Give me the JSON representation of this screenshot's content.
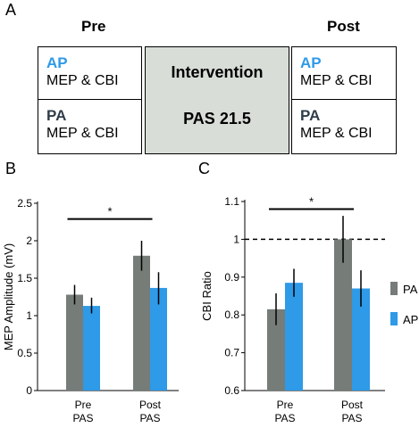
{
  "panels": {
    "a": "A",
    "b": "B",
    "c": "C"
  },
  "design": {
    "pre_header": "Pre",
    "post_header": "Post",
    "intervention_title": "Intervention",
    "intervention_protocol": "PAS 21.5",
    "ap_label": "AP",
    "pa_label": "PA",
    "measure": "MEP & CBI"
  },
  "colors": {
    "PA": "#767c78",
    "AP": "#2e9ae8"
  },
  "chart_data": [
    {
      "type": "bar",
      "panel": "B",
      "ylabel": "MEP Amplitude (mV)",
      "ylim": [
        0,
        2.5
      ],
      "yticks": [
        "0",
        "0.5",
        "1",
        "1.5",
        "2",
        "2.5"
      ],
      "categories": [
        "Pre PAS",
        "Post PAS"
      ],
      "category_lines": [
        [
          "Pre",
          "PAS"
        ],
        [
          "Post",
          "PAS"
        ]
      ],
      "series": [
        {
          "name": "PA",
          "values": [
            1.28,
            1.8
          ],
          "err_low": [
            1.15,
            1.6
          ],
          "err_high": [
            1.41,
            2.0
          ]
        },
        {
          "name": "AP",
          "values": [
            1.13,
            1.37
          ],
          "err_low": [
            1.03,
            1.15
          ],
          "err_high": [
            1.24,
            1.58
          ]
        }
      ],
      "significance": {
        "label": "*",
        "y": 2.29
      }
    },
    {
      "type": "bar",
      "panel": "C",
      "ylabel": "CBI Ratio",
      "ylim": [
        0.6,
        1.1
      ],
      "yticks": [
        "0.6",
        "0.7",
        "0.8",
        "0.9",
        "1",
        "1.1"
      ],
      "categories": [
        "Pre PAS",
        "Post PAS"
      ],
      "category_lines": [
        [
          "Pre",
          "PAS"
        ],
        [
          "Post",
          "PAS"
        ]
      ],
      "series": [
        {
          "name": "PA",
          "values": [
            0.815,
            1.0
          ],
          "err_low": [
            0.773,
            0.938
          ],
          "err_high": [
            0.857,
            1.062
          ]
        },
        {
          "name": "AP",
          "values": [
            0.885,
            0.87
          ],
          "err_low": [
            0.848,
            0.822
          ],
          "err_high": [
            0.922,
            0.918
          ]
        }
      ],
      "reference_line": 1,
      "significance": {
        "label": "*",
        "y": 1.08
      },
      "legend": [
        "PA",
        "AP"
      ],
      "legend_position": "right"
    }
  ]
}
